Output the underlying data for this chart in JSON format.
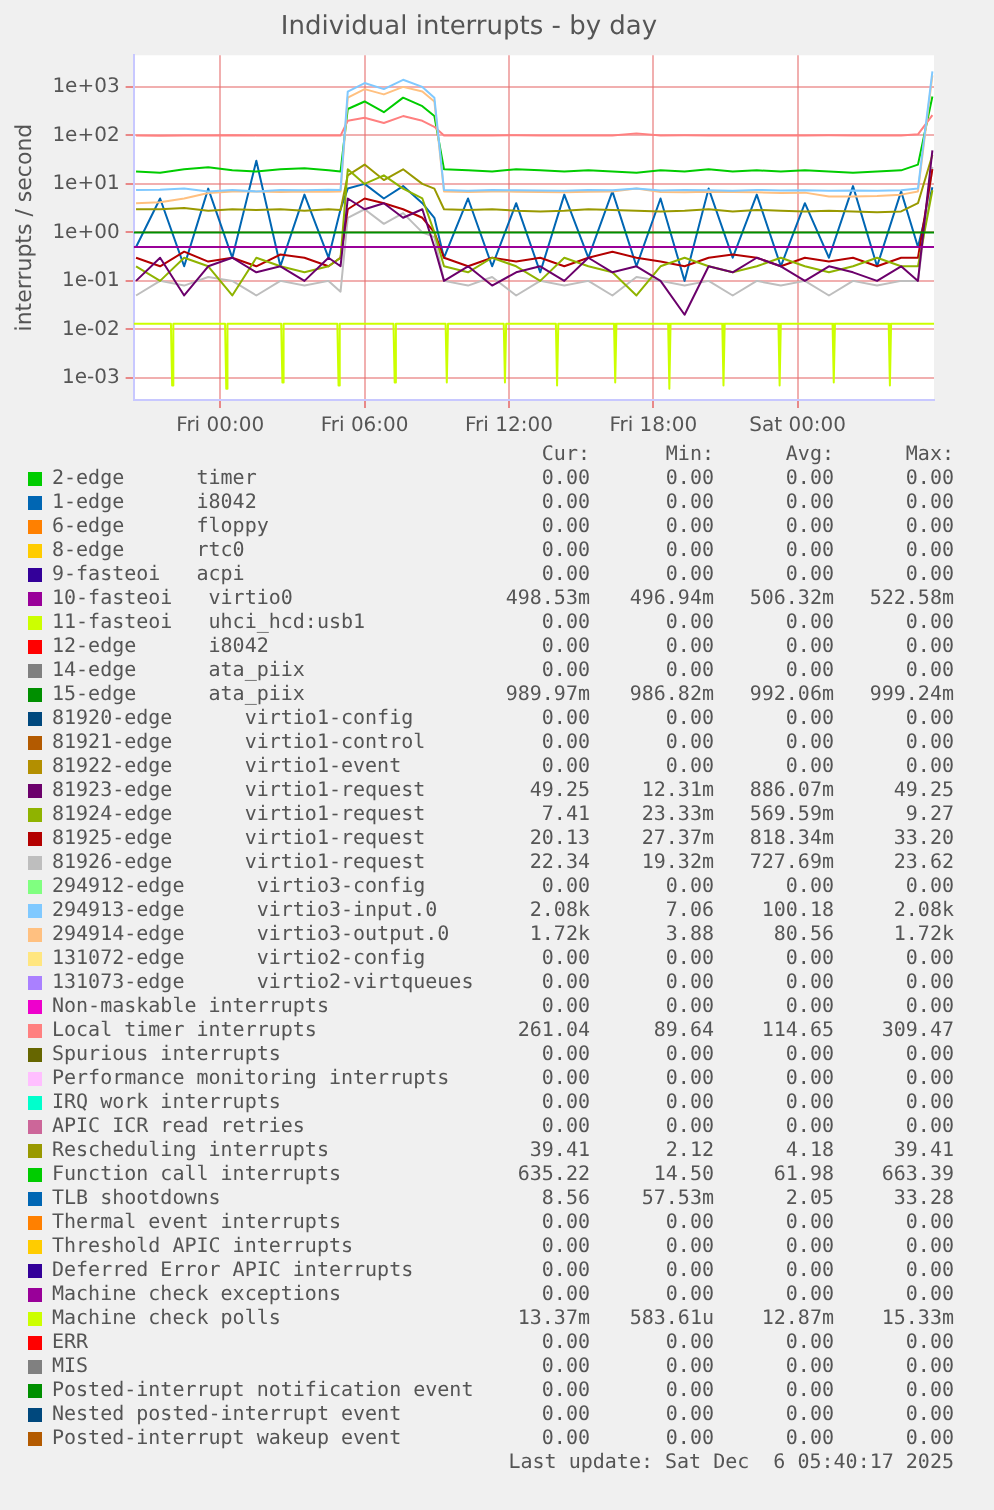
{
  "chart_data": {
    "type": "line",
    "title": "Individual interrupts - by day",
    "ylabel": "interrupts / second",
    "log": "y",
    "grid": true,
    "legend": "bottom",
    "x": [
      "2025-12-04T20:30",
      "2025-12-04T21:30",
      "2025-12-04T22:30",
      "2025-12-04T23:30",
      "2025-12-05T00:30",
      "2025-12-05T01:30",
      "2025-12-05T02:30",
      "2025-12-05T03:30",
      "2025-12-05T04:30",
      "2025-12-05T05:00",
      "2025-12-05T05:18",
      "2025-12-05T06:00",
      "2025-12-05T06:48",
      "2025-12-05T07:36",
      "2025-12-05T08:24",
      "2025-12-05T08:54",
      "2025-12-05T09:18",
      "2025-12-05T10:18",
      "2025-12-05T11:18",
      "2025-12-05T12:18",
      "2025-12-05T13:18",
      "2025-12-05T14:18",
      "2025-12-05T15:18",
      "2025-12-05T16:18",
      "2025-12-05T17:18",
      "2025-12-05T18:18",
      "2025-12-05T19:18",
      "2025-12-05T20:18",
      "2025-12-05T21:18",
      "2025-12-05T22:18",
      "2025-12-05T23:18",
      "2025-12-06T00:18",
      "2025-12-06T01:18",
      "2025-12-06T02:18",
      "2025-12-06T03:18",
      "2025-12-06T04:18",
      "2025-12-06T05:00",
      "2025-12-06T05:36"
    ],
    "xlim": [
      "2025-12-04T20:24",
      "2025-12-06T05:40"
    ],
    "xticks": [
      {
        "value": "2025-12-05T00:00",
        "label": "Fri 00:00"
      },
      {
        "value": "2025-12-05T06:00",
        "label": "Fri 06:00"
      },
      {
        "value": "2025-12-05T12:00",
        "label": "Fri 12:00"
      },
      {
        "value": "2025-12-05T18:00",
        "label": "Fri 18:00"
      },
      {
        "value": "2025-12-06T00:00",
        "label": "Sat 00:00"
      }
    ],
    "ylim": [
      0.00035,
      4500
    ],
    "yticks": [
      {
        "value": 0.001,
        "label": "1e-03"
      },
      {
        "value": 0.01,
        "label": "1e-02"
      },
      {
        "value": 0.1,
        "label": "1e-01"
      },
      {
        "value": 1,
        "label": "1e+00"
      },
      {
        "value": 10,
        "label": "1e+01"
      },
      {
        "value": 100,
        "label": "1e+02"
      },
      {
        "value": 1000,
        "label": "1e+03"
      }
    ],
    "series": [
      {
        "name": "2-edge      timer",
        "color": "#00cc00",
        "values": [
          null,
          null,
          null,
          null,
          null,
          null,
          null,
          null,
          null,
          null,
          null,
          null,
          null,
          null,
          null,
          null,
          null,
          null,
          null,
          null,
          null,
          null,
          null,
          null,
          null,
          null,
          null,
          null,
          null,
          null,
          null,
          null,
          null,
          null,
          null,
          null,
          null,
          null
        ]
      },
      {
        "name": "1-edge      i8042",
        "color": "#0066b3",
        "values": [
          null,
          null,
          null,
          null,
          null,
          null,
          null,
          null,
          null,
          null,
          null,
          null,
          null,
          null,
          null,
          null,
          null,
          null,
          null,
          null,
          null,
          null,
          null,
          null,
          null,
          null,
          null,
          null,
          null,
          null,
          null,
          null,
          null,
          null,
          null,
          null,
          null,
          null
        ]
      },
      {
        "name": "6-edge      floppy",
        "color": "#ff8000",
        "values": [
          null,
          null,
          null,
          null,
          null,
          null,
          null,
          null,
          null,
          null,
          null,
          null,
          null,
          null,
          null,
          null,
          null,
          null,
          null,
          null,
          null,
          null,
          null,
          null,
          null,
          null,
          null,
          null,
          null,
          null,
          null,
          null,
          null,
          null,
          null,
          null,
          null,
          null
        ]
      },
      {
        "name": "8-edge      rtc0",
        "color": "#ffcc00",
        "values": [
          null,
          null,
          null,
          null,
          null,
          null,
          null,
          null,
          null,
          null,
          null,
          null,
          null,
          null,
          null,
          null,
          null,
          null,
          null,
          null,
          null,
          null,
          null,
          null,
          null,
          null,
          null,
          null,
          null,
          null,
          null,
          null,
          null,
          null,
          null,
          null,
          null,
          null
        ]
      },
      {
        "name": "9-fasteoi   acpi",
        "color": "#330099",
        "values": [
          null,
          null,
          null,
          null,
          null,
          null,
          null,
          null,
          null,
          null,
          null,
          null,
          null,
          null,
          null,
          null,
          null,
          null,
          null,
          null,
          null,
          null,
          null,
          null,
          null,
          null,
          null,
          null,
          null,
          null,
          null,
          null,
          null,
          null,
          null,
          null,
          null,
          null
        ]
      },
      {
        "name": "10-fasteoi   virtio0",
        "color": "#990099",
        "x": [
          "2025-12-04T20:24",
          "2025-12-06T05:40"
        ],
        "values": [
          0.5,
          0.5
        ]
      },
      {
        "name": "11-fasteoi   uhci_hcd:usb1",
        "color": "#ccff00",
        "values": [
          null,
          null,
          null,
          null,
          null,
          null,
          null,
          null,
          null,
          null,
          null,
          null,
          null,
          null,
          null,
          null,
          null,
          null,
          null,
          null,
          null,
          null,
          null,
          null,
          null,
          null,
          null,
          null,
          null,
          null,
          null,
          null,
          null,
          null,
          null,
          null,
          null,
          null
        ]
      },
      {
        "name": "12-edge      i8042",
        "color": "#ff0000",
        "values": [
          null,
          null,
          null,
          null,
          null,
          null,
          null,
          null,
          null,
          null,
          null,
          null,
          null,
          null,
          null,
          null,
          null,
          null,
          null,
          null,
          null,
          null,
          null,
          null,
          null,
          null,
          null,
          null,
          null,
          null,
          null,
          null,
          null,
          null,
          null,
          null,
          null,
          null
        ]
      },
      {
        "name": "14-edge      ata_piix",
        "color": "#808080",
        "values": [
          null,
          null,
          null,
          null,
          null,
          null,
          null,
          null,
          null,
          null,
          null,
          null,
          null,
          null,
          null,
          null,
          null,
          null,
          null,
          null,
          null,
          null,
          null,
          null,
          null,
          null,
          null,
          null,
          null,
          null,
          null,
          null,
          null,
          null,
          null,
          null,
          null,
          null
        ]
      },
      {
        "name": "15-edge      ata_piix",
        "color": "#008f00",
        "x": [
          "2025-12-04T20:24",
          "2025-12-06T05:40"
        ],
        "values": [
          0.99,
          0.99
        ]
      },
      {
        "name": "81920-edge      virtio1-config",
        "color": "#00487d",
        "values": [
          null,
          null,
          null,
          null,
          null,
          null,
          null,
          null,
          null,
          null,
          null,
          null,
          null,
          null,
          null,
          null,
          null,
          null,
          null,
          null,
          null,
          null,
          null,
          null,
          null,
          null,
          null,
          null,
          null,
          null,
          null,
          null,
          null,
          null,
          null,
          null,
          null,
          null
        ]
      },
      {
        "name": "81921-edge      virtio1-control",
        "color": "#b35a00",
        "values": [
          null,
          null,
          null,
          null,
          null,
          null,
          null,
          null,
          null,
          null,
          null,
          null,
          null,
          null,
          null,
          null,
          null,
          null,
          null,
          null,
          null,
          null,
          null,
          null,
          null,
          null,
          null,
          null,
          null,
          null,
          null,
          null,
          null,
          null,
          null,
          null,
          null,
          null
        ]
      },
      {
        "name": "81922-edge      virtio1-event",
        "color": "#b38f00",
        "values": [
          null,
          null,
          null,
          null,
          null,
          null,
          null,
          null,
          null,
          null,
          null,
          null,
          null,
          null,
          null,
          null,
          null,
          null,
          null,
          null,
          null,
          null,
          null,
          null,
          null,
          null,
          null,
          null,
          null,
          null,
          null,
          null,
          null,
          null,
          null,
          null,
          null,
          null
        ]
      },
      {
        "name": "81923-edge      virtio1-request",
        "color": "#6b006b",
        "values": [
          0.1,
          0.3,
          0.05,
          0.2,
          0.3,
          0.15,
          0.2,
          0.1,
          0.3,
          0.2,
          5,
          3,
          4,
          2,
          3,
          0.5,
          0.1,
          0.2,
          0.08,
          0.15,
          0.2,
          0.1,
          0.3,
          0.15,
          0.2,
          0.1,
          0.02,
          0.2,
          0.15,
          0.3,
          0.2,
          0.1,
          0.2,
          0.15,
          0.1,
          0.2,
          0.1,
          49.25
        ]
      },
      {
        "name": "81924-edge      virtio1-request",
        "color": "#8fb300",
        "values": [
          0.2,
          0.1,
          0.3,
          0.2,
          0.05,
          0.3,
          0.2,
          0.15,
          0.2,
          0.3,
          20,
          10,
          15,
          8,
          5,
          1,
          0.2,
          0.15,
          0.3,
          0.2,
          0.1,
          0.3,
          0.2,
          0.15,
          0.05,
          0.2,
          0.3,
          0.2,
          0.15,
          0.2,
          0.3,
          0.2,
          0.15,
          0.2,
          0.3,
          0.2,
          0.2,
          7.41
        ]
      },
      {
        "name": "81925-edge      virtio1-request",
        "color": "#b30000",
        "values": [
          0.3,
          0.2,
          0.4,
          0.25,
          0.3,
          0.2,
          0.35,
          0.3,
          0.2,
          0.3,
          3,
          5,
          4,
          3,
          2,
          1,
          0.3,
          0.2,
          0.3,
          0.25,
          0.3,
          0.2,
          0.3,
          0.4,
          0.3,
          0.25,
          0.2,
          0.3,
          0.35,
          0.3,
          0.2,
          0.3,
          0.25,
          0.3,
          0.2,
          0.3,
          0.3,
          20.13
        ]
      },
      {
        "name": "81926-edge      virtio1-request",
        "color": "#bebebe",
        "values": [
          0.05,
          0.1,
          0.08,
          0.12,
          0.1,
          0.05,
          0.1,
          0.08,
          0.1,
          0.06,
          2,
          3,
          1.5,
          2.5,
          1,
          0.8,
          0.1,
          0.08,
          0.12,
          0.05,
          0.1,
          0.08,
          0.1,
          0.05,
          0.12,
          0.1,
          0.08,
          0.1,
          0.05,
          0.1,
          0.08,
          0.1,
          0.05,
          0.1,
          0.08,
          0.1,
          0.1,
          22.34
        ]
      },
      {
        "name": "294912-edge      virtio3-config",
        "color": "#80ff80",
        "values": [
          null,
          null,
          null,
          null,
          null,
          null,
          null,
          null,
          null,
          null,
          null,
          null,
          null,
          null,
          null,
          null,
          null,
          null,
          null,
          null,
          null,
          null,
          null,
          null,
          null,
          null,
          null,
          null,
          null,
          null,
          null,
          null,
          null,
          null,
          null,
          null,
          null,
          null
        ]
      },
      {
        "name": "294913-edge      virtio3-input.0",
        "color": "#80c9ff",
        "values": [
          7.5,
          7.6,
          8,
          7,
          7.5,
          7,
          7.5,
          7.4,
          7.6,
          7.5,
          800,
          1200,
          900,
          1400,
          1000,
          600,
          7.5,
          7.2,
          7.5,
          7.4,
          7.3,
          7.2,
          7.5,
          7.4,
          8,
          7.3,
          7.5,
          7.4,
          7.2,
          7.5,
          7.3,
          7.4,
          7.2,
          7.3,
          7.2,
          7.4,
          8,
          2080
        ]
      },
      {
        "name": "294914-edge      virtio3-output.0",
        "color": "#ffc080",
        "values": [
          4,
          4.2,
          5,
          6.5,
          7,
          7,
          6.8,
          7,
          6.9,
          7,
          600,
          900,
          700,
          1000,
          800,
          500,
          7,
          6.8,
          7,
          6.9,
          6.8,
          6.7,
          6.9,
          7,
          8,
          6.8,
          6.7,
          6.9,
          6.8,
          6.7,
          6.5,
          6.6,
          5.5,
          5.5,
          5.6,
          6,
          7,
          1720
        ]
      },
      {
        "name": "131072-edge      virtio2-config",
        "color": "#ffe680",
        "values": [
          null,
          null,
          null,
          null,
          null,
          null,
          null,
          null,
          null,
          null,
          null,
          null,
          null,
          null,
          null,
          null,
          null,
          null,
          null,
          null,
          null,
          null,
          null,
          null,
          null,
          null,
          null,
          null,
          null,
          null,
          null,
          null,
          null,
          null,
          null,
          null,
          null,
          null
        ]
      },
      {
        "name": "131073-edge      virtio2-virtqueues",
        "color": "#aa80ff",
        "values": [
          null,
          null,
          null,
          null,
          null,
          null,
          null,
          null,
          null,
          null,
          null,
          null,
          null,
          null,
          null,
          null,
          null,
          null,
          null,
          null,
          null,
          null,
          null,
          null,
          null,
          null,
          null,
          null,
          null,
          null,
          null,
          null,
          null,
          null,
          null,
          null,
          null,
          null
        ]
      },
      {
        "name": "Non-maskable interrupts",
        "color": "#ee00cc",
        "values": [
          null,
          null,
          null,
          null,
          null,
          null,
          null,
          null,
          null,
          null,
          null,
          null,
          null,
          null,
          null,
          null,
          null,
          null,
          null,
          null,
          null,
          null,
          null,
          null,
          null,
          null,
          null,
          null,
          null,
          null,
          null,
          null,
          null,
          null,
          null,
          null,
          null,
          null
        ]
      },
      {
        "name": "Local timer interrupts",
        "color": "#ff8080",
        "values": [
          100,
          98,
          100,
          99,
          101,
          100,
          99,
          100,
          100,
          99,
          200,
          230,
          180,
          250,
          200,
          150,
          100,
          99,
          100,
          101,
          100,
          100,
          99,
          100,
          110,
          100,
          101,
          100,
          99,
          100,
          100,
          100,
          101,
          100,
          100,
          100,
          105,
          261.04
        ]
      },
      {
        "name": "Spurious interrupts",
        "color": "#666600",
        "values": [
          null,
          null,
          null,
          null,
          null,
          null,
          null,
          null,
          null,
          null,
          null,
          null,
          null,
          null,
          null,
          null,
          null,
          null,
          null,
          null,
          null,
          null,
          null,
          null,
          null,
          null,
          null,
          null,
          null,
          null,
          null,
          null,
          null,
          null,
          null,
          null,
          null,
          null
        ]
      },
      {
        "name": "Performance monitoring interrupts",
        "color": "#ffbfff",
        "values": [
          null,
          null,
          null,
          null,
          null,
          null,
          null,
          null,
          null,
          null,
          null,
          null,
          null,
          null,
          null,
          null,
          null,
          null,
          null,
          null,
          null,
          null,
          null,
          null,
          null,
          null,
          null,
          null,
          null,
          null,
          null,
          null,
          null,
          null,
          null,
          null,
          null,
          null
        ]
      },
      {
        "name": "IRQ work interrupts",
        "color": "#00ffcc",
        "values": [
          null,
          null,
          null,
          null,
          null,
          null,
          null,
          null,
          null,
          null,
          null,
          null,
          null,
          null,
          null,
          null,
          null,
          null,
          null,
          null,
          null,
          null,
          null,
          null,
          null,
          null,
          null,
          null,
          null,
          null,
          null,
          null,
          null,
          null,
          null,
          null,
          null,
          null
        ]
      },
      {
        "name": "APIC ICR read retries",
        "color": "#cc6699",
        "values": [
          null,
          null,
          null,
          null,
          null,
          null,
          null,
          null,
          null,
          null,
          null,
          null,
          null,
          null,
          null,
          null,
          null,
          null,
          null,
          null,
          null,
          null,
          null,
          null,
          null,
          null,
          null,
          null,
          null,
          null,
          null,
          null,
          null,
          null,
          null,
          null,
          null,
          null
        ]
      },
      {
        "name": "Rescheduling interrupts",
        "color": "#999900",
        "values": [
          3,
          3,
          3.2,
          2.8,
          3,
          2.9,
          3,
          2.8,
          3,
          2.9,
          15,
          25,
          12,
          20,
          10,
          8,
          3,
          2.9,
          3,
          2.8,
          2.7,
          2.8,
          3,
          2.9,
          2.8,
          2.7,
          2.8,
          3,
          2.7,
          2.9,
          2.8,
          2.7,
          2.8,
          2.7,
          2.6,
          2.7,
          4,
          39.41
        ]
      },
      {
        "name": "Function call interrupts",
        "color": "#00cc00",
        "values": [
          18,
          17,
          20,
          22,
          19,
          18,
          20,
          21,
          19,
          18,
          350,
          500,
          300,
          600,
          400,
          250,
          20,
          19,
          18,
          20,
          19,
          18,
          19,
          18,
          17,
          19,
          18,
          20,
          18,
          19,
          18,
          19,
          18,
          17,
          18,
          19,
          25,
          635.22
        ]
      },
      {
        "name": "TLB shootdowns",
        "color": "#0066b3",
        "values": [
          0.5,
          5,
          0.2,
          8,
          0.3,
          30,
          0.2,
          6,
          0.3,
          3,
          8,
          10,
          5,
          9,
          4,
          2,
          0.3,
          5,
          0.2,
          4,
          0.15,
          6,
          0.3,
          7,
          0.2,
          5,
          0.1,
          8,
          0.3,
          6,
          0.2,
          4,
          0.3,
          9,
          0.2,
          7,
          0.5,
          8.56
        ]
      },
      {
        "name": "Thermal event interrupts",
        "color": "#ff8000",
        "values": [
          null,
          null,
          null,
          null,
          null,
          null,
          null,
          null,
          null,
          null,
          null,
          null,
          null,
          null,
          null,
          null,
          null,
          null,
          null,
          null,
          null,
          null,
          null,
          null,
          null,
          null,
          null,
          null,
          null,
          null,
          null,
          null,
          null,
          null,
          null,
          null,
          null,
          null
        ]
      },
      {
        "name": "Threshold APIC interrupts",
        "color": "#ffcc00",
        "values": [
          null,
          null,
          null,
          null,
          null,
          null,
          null,
          null,
          null,
          null,
          null,
          null,
          null,
          null,
          null,
          null,
          null,
          null,
          null,
          null,
          null,
          null,
          null,
          null,
          null,
          null,
          null,
          null,
          null,
          null,
          null,
          null,
          null,
          null,
          null,
          null,
          null,
          null
        ]
      },
      {
        "name": "Deferred Error APIC interrupts",
        "color": "#330099",
        "values": [
          null,
          null,
          null,
          null,
          null,
          null,
          null,
          null,
          null,
          null,
          null,
          null,
          null,
          null,
          null,
          null,
          null,
          null,
          null,
          null,
          null,
          null,
          null,
          null,
          null,
          null,
          null,
          null,
          null,
          null,
          null,
          null,
          null,
          null,
          null,
          null,
          null,
          null
        ]
      },
      {
        "name": "Machine check exceptions",
        "color": "#990099",
        "values": [
          null,
          null,
          null,
          null,
          null,
          null,
          null,
          null,
          null,
          null,
          null,
          null,
          null,
          null,
          null,
          null,
          null,
          null,
          null,
          null,
          null,
          null,
          null,
          null,
          null,
          null,
          null,
          null,
          null,
          null,
          null,
          null,
          null,
          null,
          null,
          null,
          null,
          null
        ]
      },
      {
        "name": "Machine check polls",
        "color": "#ccff00",
        "x": [
          "2025-12-04T20:24",
          "2025-12-04T21:57",
          "2025-12-04T22:00",
          "2025-12-04T22:03",
          "2025-12-05T00:12",
          "2025-12-05T00:15",
          "2025-12-05T00:18",
          "2025-12-05T02:32",
          "2025-12-05T02:35",
          "2025-12-05T02:38",
          "2025-12-05T04:52",
          "2025-12-05T04:55",
          "2025-12-05T04:58",
          "2025-12-05T07:12",
          "2025-12-05T07:15",
          "2025-12-05T07:18",
          "2025-12-05T09:22",
          "2025-12-05T09:25",
          "2025-12-05T09:28",
          "2025-12-05T11:47",
          "2025-12-05T11:50",
          "2025-12-05T11:53",
          "2025-12-05T13:57",
          "2025-12-05T14:00",
          "2025-12-05T14:03",
          "2025-12-05T16:22",
          "2025-12-05T16:25",
          "2025-12-05T16:28",
          "2025-12-05T18:37",
          "2025-12-05T18:40",
          "2025-12-05T18:43",
          "2025-12-05T20:52",
          "2025-12-05T20:55",
          "2025-12-05T20:58",
          "2025-12-05T23:12",
          "2025-12-05T23:15",
          "2025-12-05T23:18",
          "2025-12-06T01:27",
          "2025-12-06T01:30",
          "2025-12-06T01:33",
          "2025-12-06T03:47",
          "2025-12-06T03:50",
          "2025-12-06T03:53",
          "2025-12-06T05:40"
        ],
        "values": [
          0.013,
          0.013,
          0.0007,
          0.013,
          0.013,
          0.0006,
          0.013,
          0.013,
          0.0008,
          0.013,
          0.013,
          0.0007,
          0.013,
          0.013,
          0.0008,
          0.013,
          0.013,
          0.0008,
          0.013,
          0.013,
          0.0008,
          0.013,
          0.013,
          0.0007,
          0.013,
          0.013,
          0.0008,
          0.013,
          0.013,
          0.0006,
          0.013,
          0.013,
          0.0007,
          0.013,
          0.013,
          0.0007,
          0.013,
          0.013,
          0.0008,
          0.013,
          0.013,
          0.0007,
          0.013,
          0.013
        ]
      },
      {
        "name": "ERR",
        "color": "#ff0000",
        "values": [
          null,
          null,
          null,
          null,
          null,
          null,
          null,
          null,
          null,
          null,
          null,
          null,
          null,
          null,
          null,
          null,
          null,
          null,
          null,
          null,
          null,
          null,
          null,
          null,
          null,
          null,
          null,
          null,
          null,
          null,
          null,
          null,
          null,
          null,
          null,
          null,
          null,
          null
        ]
      },
      {
        "name": "MIS",
        "color": "#808080",
        "values": [
          null,
          null,
          null,
          null,
          null,
          null,
          null,
          null,
          null,
          null,
          null,
          null,
          null,
          null,
          null,
          null,
          null,
          null,
          null,
          null,
          null,
          null,
          null,
          null,
          null,
          null,
          null,
          null,
          null,
          null,
          null,
          null,
          null,
          null,
          null,
          null,
          null,
          null
        ]
      },
      {
        "name": "Posted-interrupt notification event",
        "color": "#008f00",
        "values": [
          null,
          null,
          null,
          null,
          null,
          null,
          null,
          null,
          null,
          null,
          null,
          null,
          null,
          null,
          null,
          null,
          null,
          null,
          null,
          null,
          null,
          null,
          null,
          null,
          null,
          null,
          null,
          null,
          null,
          null,
          null,
          null,
          null,
          null,
          null,
          null,
          null,
          null
        ]
      },
      {
        "name": "Nested posted-interrupt event",
        "color": "#00487d",
        "values": [
          null,
          null,
          null,
          null,
          null,
          null,
          null,
          null,
          null,
          null,
          null,
          null,
          null,
          null,
          null,
          null,
          null,
          null,
          null,
          null,
          null,
          null,
          null,
          null,
          null,
          null,
          null,
          null,
          null,
          null,
          null,
          null,
          null,
          null,
          null,
          null,
          null,
          null
        ]
      },
      {
        "name": "Posted-interrupt wakeup event",
        "color": "#b35a00",
        "values": [
          null,
          null,
          null,
          null,
          null,
          null,
          null,
          null,
          null,
          null,
          null,
          null,
          null,
          null,
          null,
          null,
          null,
          null,
          null,
          null,
          null,
          null,
          null,
          null,
          null,
          null,
          null,
          null,
          null,
          null,
          null,
          null,
          null,
          null,
          null,
          null,
          null,
          null
        ]
      }
    ],
    "annotations": [
      "Cur:",
      "Min:",
      "Avg:",
      "Max:",
      "0.00",
      "0.00",
      "0.00",
      "0.00",
      "0.00",
      "0.00",
      "0.00",
      "0.00",
      "0.00",
      "0.00",
      "0.00",
      "0.00",
      "0.00",
      "0.00",
      "0.00",
      "0.00",
      "0.00",
      "0.00",
      "0.00",
      "0.00",
      "498.53m",
      "496.94m",
      "506.32m",
      "522.58m",
      "0.00",
      "0.00",
      "0.00",
      "0.00",
      "0.00",
      "0.00",
      "0.00",
      "0.00",
      "0.00",
      "0.00",
      "0.00",
      "0.00",
      "989.97m",
      "986.82m",
      "992.06m",
      "999.24m",
      "0.00",
      "0.00",
      "0.00",
      "0.00",
      "0.00",
      "0.00",
      "0.00",
      "0.00",
      "0.00",
      "0.00",
      "0.00",
      "0.00",
      "49.25",
      "12.31m",
      "886.07m",
      "49.25",
      "7.41",
      "23.33m",
      "569.59m",
      "9.27",
      "20.13",
      "27.37m",
      "818.34m",
      "33.20",
      "22.34",
      "19.32m",
      "727.69m",
      "23.62",
      "0.00",
      "0.00",
      "0.00",
      "0.00",
      "2.08k",
      "7.06",
      "100.18",
      "2.08k",
      "1.72k",
      "3.88",
      "80.56",
      "1.72k",
      "0.00",
      "0.00",
      "0.00",
      "0.00",
      "0.00",
      "0.00",
      "0.00",
      "0.00",
      "0.00",
      "0.00",
      "0.00",
      "0.00",
      "261.04",
      "89.64",
      "114.65",
      "309.47",
      "0.00",
      "0.00",
      "0.00",
      "0.00",
      "0.00",
      "0.00",
      "0.00",
      "0.00",
      "0.00",
      "0.00",
      "0.00",
      "0.00",
      "0.00",
      "0.00",
      "0.00",
      "0.00",
      "39.41",
      "2.12",
      "4.18",
      "39.41",
      "635.22",
      "14.50",
      "61.98",
      "663.39",
      "8.56",
      "57.53m",
      "2.05",
      "33.28",
      "0.00",
      "0.00",
      "0.00",
      "0.00",
      "0.00",
      "0.00",
      "0.00",
      "0.00",
      "0.00",
      "0.00",
      "0.00",
      "0.00",
      "0.00",
      "0.00",
      "0.00",
      "0.00",
      "13.37m",
      "583.61u",
      "12.87m",
      "15.33m",
      "0.00",
      "0.00",
      "0.00",
      "0.00",
      "0.00",
      "0.00",
      "0.00",
      "0.00",
      "0.00",
      "0.00",
      "0.00",
      "0.00",
      "0.00",
      "0.00",
      "0.00",
      "0.00",
      "0.00",
      "0.00",
      "0.00",
      "0.00",
      "Last update: Sat Dec  6 05:40:17 2025"
    ]
  }
}
